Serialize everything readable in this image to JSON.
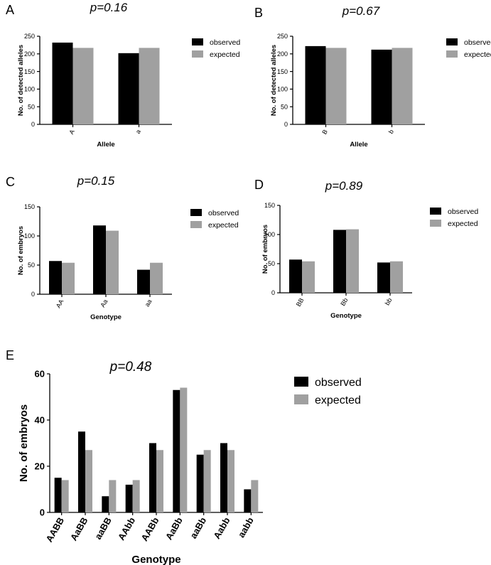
{
  "legend": {
    "observed": "observed",
    "expected": "expected"
  },
  "colors": {
    "observed": "#000000",
    "expected": "#a0a0a0",
    "axis": "#000000"
  },
  "chart_data": [
    {
      "panel": "A",
      "type": "bar",
      "pvalue": "p=0.16",
      "categories": [
        "A",
        "a"
      ],
      "series": [
        {
          "name": "observed",
          "values": [
            232,
            202
          ]
        },
        {
          "name": "expected",
          "values": [
            217,
            217
          ]
        }
      ],
      "ylabel": "No. of detected alleles",
      "xlabel": "Allele",
      "ylim": [
        0,
        250
      ],
      "yticks": [
        0,
        50,
        100,
        150,
        200,
        250
      ],
      "legend_position": "right",
      "grid": false
    },
    {
      "panel": "B",
      "type": "bar",
      "pvalue": "p=0.67",
      "categories": [
        "B",
        "b"
      ],
      "series": [
        {
          "name": "observed",
          "values": [
            222,
            212
          ]
        },
        {
          "name": "expected",
          "values": [
            217,
            217
          ]
        }
      ],
      "ylabel": "No. of detected alleles",
      "xlabel": "Allele",
      "ylim": [
        0,
        250
      ],
      "yticks": [
        0,
        50,
        100,
        150,
        200,
        250
      ],
      "legend_position": "right",
      "grid": false
    },
    {
      "panel": "C",
      "type": "bar",
      "pvalue": "p=0.15",
      "categories": [
        "AA",
        "Aa",
        "aa"
      ],
      "series": [
        {
          "name": "observed",
          "values": [
            57,
            118,
            42
          ]
        },
        {
          "name": "expected",
          "values": [
            54,
            109,
            54
          ]
        }
      ],
      "ylabel": "No. of embryos",
      "xlabel": "Genotype",
      "ylim": [
        0,
        150
      ],
      "yticks": [
        0,
        50,
        100,
        150
      ],
      "legend_position": "right",
      "grid": false
    },
    {
      "panel": "D",
      "type": "bar",
      "pvalue": "p=0.89",
      "categories": [
        "BB",
        "Bb",
        "bb"
      ],
      "series": [
        {
          "name": "observed",
          "values": [
            57,
            108,
            52
          ]
        },
        {
          "name": "expected",
          "values": [
            54,
            109,
            54
          ]
        }
      ],
      "ylabel": "No. of embryos",
      "xlabel": "Genotype",
      "ylim": [
        0,
        150
      ],
      "yticks": [
        0,
        50,
        100,
        150
      ],
      "legend_position": "right",
      "grid": false
    },
    {
      "panel": "E",
      "type": "bar",
      "pvalue": "p=0.48",
      "categories": [
        "AABB",
        "AaBB",
        "aaBB",
        "AAbb",
        "AABb",
        "AaBb",
        "aaBb",
        "Aabb",
        "aabb"
      ],
      "series": [
        {
          "name": "observed",
          "values": [
            15,
            35,
            7,
            12,
            30,
            53,
            25,
            30,
            10
          ]
        },
        {
          "name": "expected",
          "values": [
            14,
            27,
            14,
            14,
            27,
            54,
            27,
            27,
            14
          ]
        }
      ],
      "ylabel": "No. of embryos",
      "xlabel": "Genotype",
      "ylim": [
        0,
        60
      ],
      "yticks": [
        0,
        20,
        40,
        60
      ],
      "legend_position": "right",
      "grid": false
    }
  ]
}
